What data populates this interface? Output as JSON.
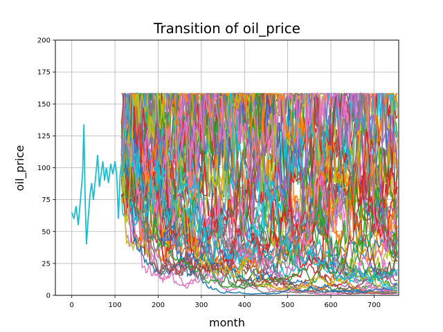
{
  "chart_data": {
    "type": "line",
    "title": "Transition of oil_price",
    "xlabel": "month",
    "ylabel": "oil_price",
    "xlim": [
      -38,
      757
    ],
    "ylim": [
      0,
      200
    ],
    "xticks": [
      0,
      100,
      200,
      300,
      400,
      500,
      600,
      700
    ],
    "yticks": [
      0,
      25,
      50,
      75,
      100,
      125,
      150,
      175,
      200
    ],
    "xtick_labels": [
      "0",
      "100",
      "200",
      "300",
      "400",
      "500",
      "600",
      "700"
    ],
    "ytick_labels": [
      "0",
      "25",
      "50",
      "75",
      "100",
      "125",
      "150",
      "175",
      "200"
    ],
    "grid": true,
    "legend": "none",
    "simulation": {
      "count": 60,
      "start_month": 115,
      "end_month": 755,
      "cap": 158,
      "floor": 1
    },
    "history": {
      "color": "#17becf",
      "x": [
        0,
        5,
        10,
        15,
        20,
        25,
        28,
        31,
        34,
        38,
        42,
        46,
        50,
        55,
        60,
        64,
        68,
        72,
        76,
        80,
        85,
        90,
        95,
        100,
        104,
        108,
        112,
        115
      ],
      "y": [
        65,
        60,
        70,
        55,
        75,
        95,
        134,
        75,
        40,
        60,
        78,
        88,
        75,
        92,
        110,
        85,
        95,
        105,
        90,
        100,
        88,
        103,
        95,
        105,
        95,
        60,
        95,
        103
      ]
    },
    "palette": [
      "#1f77b4",
      "#ff7f0e",
      "#2ca02c",
      "#d62728",
      "#9467bd",
      "#8c564b",
      "#e377c2",
      "#7f7f7f",
      "#bcbd22",
      "#17becf"
    ]
  }
}
